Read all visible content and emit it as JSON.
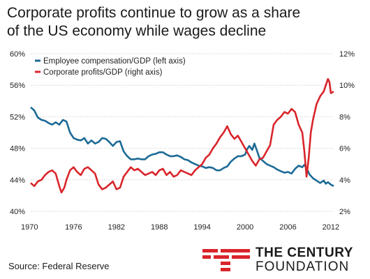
{
  "title": {
    "line1": "Corporate profits continue to grow as a share",
    "line2": "of the US economy while wages decline"
  },
  "source": "Source: Federal Reserve",
  "logo": {
    "line1": "THE CENTURY",
    "line2": "FOUNDATION",
    "accent_color": "#d9252b"
  },
  "chart_data": {
    "type": "line",
    "x_ticks": [
      "1970",
      "1976",
      "1982",
      "1988",
      "1994",
      "2000",
      "2006",
      "2012"
    ],
    "xlim": [
      1970,
      2012.4
    ],
    "y_left": {
      "ticks": [
        "40%",
        "44%",
        "48%",
        "52%",
        "56%",
        "60%"
      ],
      "lim": [
        40,
        60
      ]
    },
    "y_right": {
      "ticks": [
        "2%",
        "4%",
        "6%",
        "8%",
        "10%",
        "12%"
      ],
      "lim": [
        2,
        12
      ]
    },
    "legend_position": "top-left",
    "series": [
      {
        "name": "Employee compensation/GDP (left axis)",
        "axis": "left",
        "color": "#1c6a96",
        "points": [
          [
            1970.0,
            53.2
          ],
          [
            1970.5,
            52.8
          ],
          [
            1971.0,
            51.9
          ],
          [
            1971.5,
            51.6
          ],
          [
            1972.0,
            51.5
          ],
          [
            1972.5,
            51.2
          ],
          [
            1973.0,
            51.0
          ],
          [
            1973.5,
            51.3
          ],
          [
            1974.0,
            51.0
          ],
          [
            1974.5,
            51.6
          ],
          [
            1975.0,
            51.4
          ],
          [
            1975.5,
            50.0
          ],
          [
            1976.0,
            49.3
          ],
          [
            1976.5,
            49.1
          ],
          [
            1977.0,
            49.0
          ],
          [
            1977.5,
            49.3
          ],
          [
            1978.0,
            48.6
          ],
          [
            1978.5,
            49.0
          ],
          [
            1979.0,
            48.6
          ],
          [
            1979.5,
            48.8
          ],
          [
            1980.0,
            49.3
          ],
          [
            1980.5,
            49.2
          ],
          [
            1981.0,
            48.8
          ],
          [
            1981.5,
            48.3
          ],
          [
            1982.0,
            48.8
          ],
          [
            1982.5,
            48.9
          ],
          [
            1983.0,
            47.6
          ],
          [
            1983.5,
            47.0
          ],
          [
            1984.0,
            46.6
          ],
          [
            1984.5,
            46.6
          ],
          [
            1985.0,
            46.7
          ],
          [
            1985.5,
            46.6
          ],
          [
            1986.0,
            46.6
          ],
          [
            1986.5,
            47.0
          ],
          [
            1987.0,
            47.2
          ],
          [
            1987.5,
            47.3
          ],
          [
            1988.0,
            47.5
          ],
          [
            1988.5,
            47.5
          ],
          [
            1989.0,
            47.2
          ],
          [
            1989.5,
            47.0
          ],
          [
            1990.0,
            47.0
          ],
          [
            1990.5,
            47.1
          ],
          [
            1991.0,
            46.9
          ],
          [
            1991.5,
            46.6
          ],
          [
            1992.0,
            46.5
          ],
          [
            1992.5,
            46.2
          ],
          [
            1993.0,
            46.0
          ],
          [
            1993.5,
            45.8
          ],
          [
            1994.0,
            45.7
          ],
          [
            1994.5,
            45.5
          ],
          [
            1995.0,
            45.6
          ],
          [
            1995.5,
            45.5
          ],
          [
            1996.0,
            45.2
          ],
          [
            1996.5,
            45.2
          ],
          [
            1997.0,
            45.5
          ],
          [
            1997.5,
            45.7
          ],
          [
            1998.0,
            46.3
          ],
          [
            1998.5,
            46.7
          ],
          [
            1999.0,
            47.0
          ],
          [
            1999.5,
            47.0
          ],
          [
            2000.0,
            47.2
          ],
          [
            2000.3,
            47.9
          ],
          [
            2000.6,
            48.3
          ],
          [
            2001.0,
            47.8
          ],
          [
            2001.3,
            48.6
          ],
          [
            2001.7,
            47.6
          ],
          [
            2002.0,
            46.8
          ],
          [
            2002.5,
            46.4
          ],
          [
            2003.0,
            46.0
          ],
          [
            2003.5,
            45.8
          ],
          [
            2004.0,
            45.6
          ],
          [
            2004.5,
            45.3
          ],
          [
            2005.0,
            45.1
          ],
          [
            2005.5,
            44.9
          ],
          [
            2006.0,
            45.0
          ],
          [
            2006.5,
            44.8
          ],
          [
            2007.0,
            45.4
          ],
          [
            2007.5,
            45.8
          ],
          [
            2008.0,
            45.6
          ],
          [
            2008.3,
            45.9
          ],
          [
            2008.7,
            45.3
          ],
          [
            2009.0,
            44.7
          ],
          [
            2009.5,
            44.2
          ],
          [
            2010.0,
            43.9
          ],
          [
            2010.5,
            43.6
          ],
          [
            2011.0,
            43.9
          ],
          [
            2011.3,
            43.5
          ],
          [
            2011.6,
            43.7
          ],
          [
            2012.0,
            43.4
          ],
          [
            2012.4,
            43.2
          ]
        ]
      },
      {
        "name": "Corporate profits/GDP (right axis)",
        "axis": "right",
        "color": "#d9252b",
        "points": [
          [
            1970.0,
            3.8
          ],
          [
            1970.5,
            3.6
          ],
          [
            1971.0,
            3.9
          ],
          [
            1971.5,
            4.0
          ],
          [
            1972.0,
            4.3
          ],
          [
            1972.5,
            4.5
          ],
          [
            1973.0,
            4.6
          ],
          [
            1973.5,
            4.4
          ],
          [
            1974.0,
            3.6
          ],
          [
            1974.3,
            3.2
          ],
          [
            1974.7,
            3.5
          ],
          [
            1975.0,
            4.0
          ],
          [
            1975.5,
            4.6
          ],
          [
            1976.0,
            4.8
          ],
          [
            1976.5,
            4.5
          ],
          [
            1977.0,
            4.3
          ],
          [
            1977.5,
            4.7
          ],
          [
            1978.0,
            4.8
          ],
          [
            1978.5,
            4.6
          ],
          [
            1979.0,
            4.4
          ],
          [
            1979.5,
            3.7
          ],
          [
            1980.0,
            3.4
          ],
          [
            1980.5,
            3.5
          ],
          [
            1981.0,
            3.7
          ],
          [
            1981.5,
            3.9
          ],
          [
            1982.0,
            3.4
          ],
          [
            1982.5,
            3.5
          ],
          [
            1983.0,
            4.2
          ],
          [
            1983.5,
            4.5
          ],
          [
            1984.0,
            4.8
          ],
          [
            1984.5,
            4.6
          ],
          [
            1985.0,
            4.7
          ],
          [
            1985.5,
            4.5
          ],
          [
            1986.0,
            4.3
          ],
          [
            1986.5,
            4.4
          ],
          [
            1987.0,
            4.5
          ],
          [
            1987.5,
            4.3
          ],
          [
            1988.0,
            4.6
          ],
          [
            1988.5,
            4.7
          ],
          [
            1989.0,
            4.3
          ],
          [
            1989.5,
            4.5
          ],
          [
            1990.0,
            4.2
          ],
          [
            1990.5,
            4.3
          ],
          [
            1991.0,
            4.6
          ],
          [
            1991.5,
            4.5
          ],
          [
            1992.0,
            4.4
          ],
          [
            1992.5,
            4.3
          ],
          [
            1993.0,
            4.6
          ],
          [
            1993.5,
            4.8
          ],
          [
            1994.0,
            5.0
          ],
          [
            1994.5,
            5.4
          ],
          [
            1995.0,
            5.6
          ],
          [
            1995.5,
            6.0
          ],
          [
            1996.0,
            6.3
          ],
          [
            1996.5,
            6.7
          ],
          [
            1997.0,
            7.0
          ],
          [
            1997.5,
            7.4
          ],
          [
            1998.0,
            6.9
          ],
          [
            1998.5,
            6.6
          ],
          [
            1999.0,
            6.8
          ],
          [
            1999.5,
            6.4
          ],
          [
            2000.0,
            6.0
          ],
          [
            2000.5,
            5.6
          ],
          [
            2001.0,
            5.2
          ],
          [
            2001.5,
            4.9
          ],
          [
            2002.0,
            5.3
          ],
          [
            2002.5,
            5.4
          ],
          [
            2003.0,
            5.8
          ],
          [
            2003.5,
            6.2
          ],
          [
            2004.0,
            7.5
          ],
          [
            2004.5,
            7.8
          ],
          [
            2005.0,
            8.0
          ],
          [
            2005.5,
            8.3
          ],
          [
            2006.0,
            8.2
          ],
          [
            2006.5,
            8.5
          ],
          [
            2007.0,
            8.3
          ],
          [
            2007.5,
            7.5
          ],
          [
            2008.0,
            7.0
          ],
          [
            2008.3,
            5.8
          ],
          [
            2008.6,
            4.2
          ],
          [
            2008.9,
            5.4
          ],
          [
            2009.2,
            7.0
          ],
          [
            2009.5,
            7.8
          ],
          [
            2010.0,
            8.8
          ],
          [
            2010.5,
            9.3
          ],
          [
            2011.0,
            9.6
          ],
          [
            2011.3,
            10.0
          ],
          [
            2011.6,
            10.4
          ],
          [
            2011.8,
            10.2
          ],
          [
            2012.0,
            9.5
          ],
          [
            2012.4,
            9.6
          ]
        ]
      }
    ]
  }
}
